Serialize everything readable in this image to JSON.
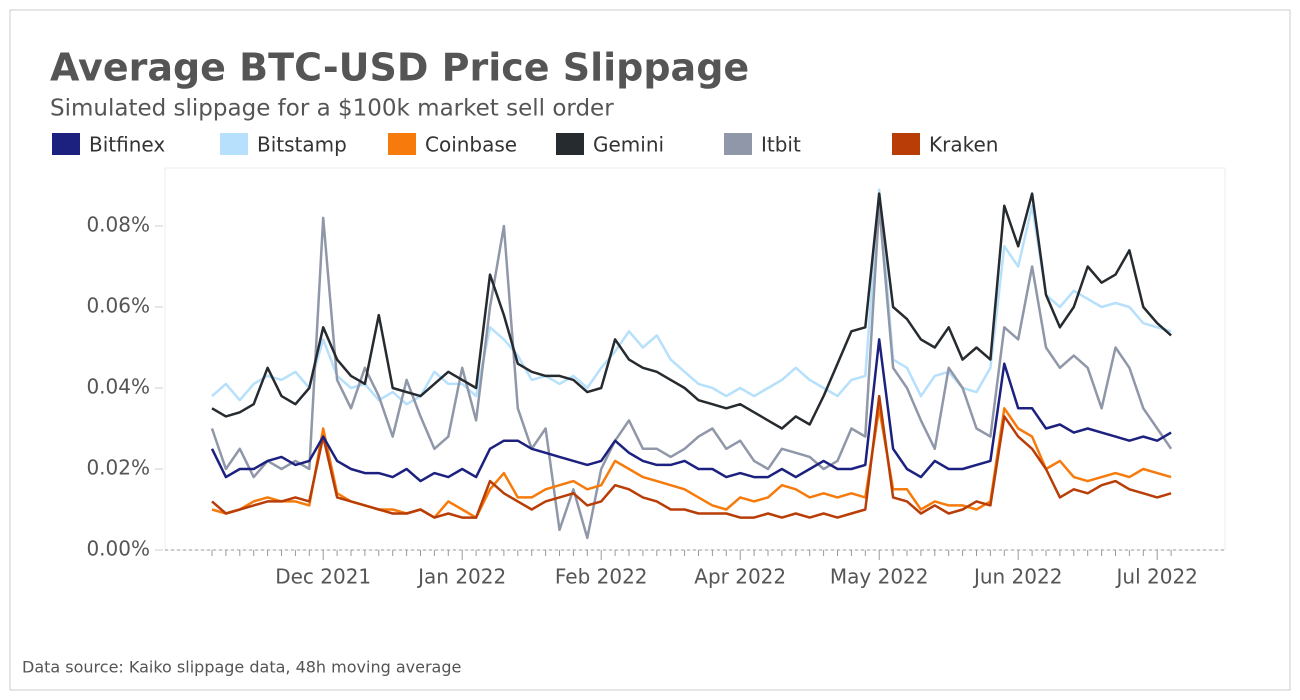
{
  "chart_data": {
    "type": "line",
    "title": "Average BTC-USD Price Slippage",
    "subtitle": "Simulated slippage for a $100k market sell order",
    "source": "Data source: Kaiko slippage data, 48h moving average",
    "categories": [
      null,
      null,
      null,
      null,
      null,
      null,
      null,
      null,
      "Dec 2021",
      null,
      null,
      null,
      null,
      null,
      null,
      null,
      null,
      null,
      "Jan 2022",
      null,
      null,
      null,
      null,
      null,
      null,
      null,
      null,
      null,
      "Feb 2022",
      null,
      null,
      null,
      null,
      null,
      null,
      null,
      null,
      null,
      "Apr 2022",
      null,
      null,
      null,
      null,
      null,
      null,
      null,
      null,
      null,
      "May 2022",
      null,
      null,
      null,
      null,
      null,
      null,
      null,
      null,
      null,
      "Jun 2022",
      null,
      null,
      null,
      null,
      null,
      null,
      null,
      null,
      null,
      "Jul 2022",
      null
    ],
    "ylim": [
      0,
      0.094
    ],
    "yticks": [
      {
        "value": 0,
        "label": "0.00%"
      },
      {
        "value": 0.02,
        "label": "0.02%"
      },
      {
        "value": 0.04,
        "label": "0.04%"
      },
      {
        "value": 0.06,
        "label": "0.06%"
      },
      {
        "value": 0.08,
        "label": "0.08%"
      }
    ],
    "series": [
      {
        "name": "Bitfinex",
        "color": "#1c2180",
        "values": [
          0.025,
          0.018,
          0.02,
          0.02,
          0.022,
          0.023,
          0.021,
          0.022,
          0.028,
          0.022,
          0.02,
          0.019,
          0.019,
          0.018,
          0.02,
          0.017,
          0.019,
          0.018,
          0.02,
          0.018,
          0.025,
          0.027,
          0.027,
          0.025,
          0.024,
          0.023,
          0.022,
          0.021,
          0.022,
          0.027,
          0.024,
          0.022,
          0.021,
          0.021,
          0.022,
          0.02,
          0.02,
          0.018,
          0.019,
          0.018,
          0.018,
          0.02,
          0.018,
          0.02,
          0.022,
          0.02,
          0.02,
          0.021,
          0.052,
          0.025,
          0.02,
          0.018,
          0.022,
          0.02,
          0.02,
          0.021,
          0.022,
          0.046,
          0.035,
          0.035,
          0.03,
          0.031,
          0.029,
          0.03,
          0.029,
          0.028,
          0.027,
          0.028,
          0.027,
          0.029
        ]
      },
      {
        "name": "Bitstamp",
        "color": "#b6e0fb",
        "values": [
          0.038,
          0.041,
          0.037,
          0.041,
          0.043,
          0.042,
          0.044,
          0.04,
          0.052,
          0.043,
          0.04,
          0.041,
          0.037,
          0.039,
          0.036,
          0.038,
          0.044,
          0.041,
          0.041,
          0.038,
          0.055,
          0.052,
          0.048,
          0.042,
          0.043,
          0.041,
          0.043,
          0.04,
          0.045,
          0.049,
          0.054,
          0.05,
          0.053,
          0.047,
          0.044,
          0.041,
          0.04,
          0.038,
          0.04,
          0.038,
          0.04,
          0.042,
          0.045,
          0.042,
          0.04,
          0.038,
          0.042,
          0.043,
          0.089,
          0.047,
          0.045,
          0.038,
          0.043,
          0.044,
          0.04,
          0.039,
          0.045,
          0.075,
          0.07,
          0.085,
          0.063,
          0.06,
          0.064,
          0.062,
          0.06,
          0.061,
          0.06,
          0.056,
          0.055,
          0.054
        ]
      },
      {
        "name": "Coinbase",
        "color": "#f77b0c",
        "values": [
          0.01,
          0.009,
          0.01,
          0.012,
          0.013,
          0.012,
          0.012,
          0.011,
          0.03,
          0.014,
          0.012,
          0.011,
          0.01,
          0.01,
          0.009,
          0.01,
          0.008,
          0.012,
          0.01,
          0.008,
          0.015,
          0.019,
          0.013,
          0.013,
          0.015,
          0.016,
          0.017,
          0.015,
          0.016,
          0.022,
          0.02,
          0.018,
          0.017,
          0.016,
          0.015,
          0.013,
          0.011,
          0.01,
          0.013,
          0.012,
          0.013,
          0.016,
          0.015,
          0.013,
          0.014,
          0.013,
          0.014,
          0.013,
          0.035,
          0.015,
          0.015,
          0.01,
          0.012,
          0.011,
          0.011,
          0.01,
          0.012,
          0.035,
          0.03,
          0.028,
          0.02,
          0.022,
          0.018,
          0.017,
          0.018,
          0.019,
          0.018,
          0.02,
          0.019,
          0.018
        ]
      },
      {
        "name": "Gemini",
        "color": "#262b30",
        "values": [
          0.035,
          0.033,
          0.034,
          0.036,
          0.045,
          0.038,
          0.036,
          0.04,
          0.055,
          0.047,
          0.043,
          0.041,
          0.058,
          0.04,
          0.039,
          0.038,
          0.041,
          0.044,
          0.042,
          0.04,
          0.068,
          0.058,
          0.046,
          0.044,
          0.043,
          0.043,
          0.042,
          0.039,
          0.04,
          0.052,
          0.047,
          0.045,
          0.044,
          0.042,
          0.04,
          0.037,
          0.036,
          0.035,
          0.036,
          0.034,
          0.032,
          0.03,
          0.033,
          0.031,
          0.038,
          0.046,
          0.054,
          0.055,
          0.088,
          0.06,
          0.057,
          0.052,
          0.05,
          0.055,
          0.047,
          0.05,
          0.047,
          0.085,
          0.075,
          0.088,
          0.063,
          0.055,
          0.06,
          0.07,
          0.066,
          0.068,
          0.074,
          0.06,
          0.056,
          0.053
        ]
      },
      {
        "name": "Itbit",
        "color": "#8f97a8",
        "values": [
          0.03,
          0.02,
          0.025,
          0.018,
          0.022,
          0.02,
          0.022,
          0.02,
          0.082,
          0.042,
          0.035,
          0.045,
          0.038,
          0.028,
          0.042,
          0.033,
          0.025,
          0.028,
          0.045,
          0.032,
          0.06,
          0.08,
          0.035,
          0.025,
          0.03,
          0.005,
          0.015,
          0.003,
          0.02,
          0.027,
          0.032,
          0.025,
          0.025,
          0.023,
          0.025,
          0.028,
          0.03,
          0.025,
          0.027,
          0.022,
          0.02,
          0.025,
          0.024,
          0.023,
          0.02,
          0.022,
          0.03,
          0.028,
          0.085,
          0.045,
          0.04,
          0.032,
          0.025,
          0.045,
          0.04,
          0.03,
          0.028,
          0.055,
          0.052,
          0.07,
          0.05,
          0.045,
          0.048,
          0.045,
          0.035,
          0.05,
          0.045,
          0.035,
          0.03,
          0.025
        ]
      },
      {
        "name": "Kraken",
        "color": "#b83d06",
        "values": [
          0.012,
          0.009,
          0.01,
          0.011,
          0.012,
          0.012,
          0.013,
          0.012,
          0.028,
          0.013,
          0.012,
          0.011,
          0.01,
          0.009,
          0.009,
          0.01,
          0.008,
          0.009,
          0.008,
          0.008,
          0.017,
          0.014,
          0.012,
          0.01,
          0.012,
          0.013,
          0.014,
          0.011,
          0.012,
          0.016,
          0.015,
          0.013,
          0.012,
          0.01,
          0.01,
          0.009,
          0.009,
          0.009,
          0.008,
          0.008,
          0.009,
          0.008,
          0.009,
          0.008,
          0.009,
          0.008,
          0.009,
          0.01,
          0.038,
          0.013,
          0.012,
          0.009,
          0.011,
          0.009,
          0.01,
          0.012,
          0.011,
          0.033,
          0.028,
          0.025,
          0.02,
          0.013,
          0.015,
          0.014,
          0.016,
          0.017,
          0.015,
          0.014,
          0.013,
          0.014
        ]
      }
    ]
  }
}
